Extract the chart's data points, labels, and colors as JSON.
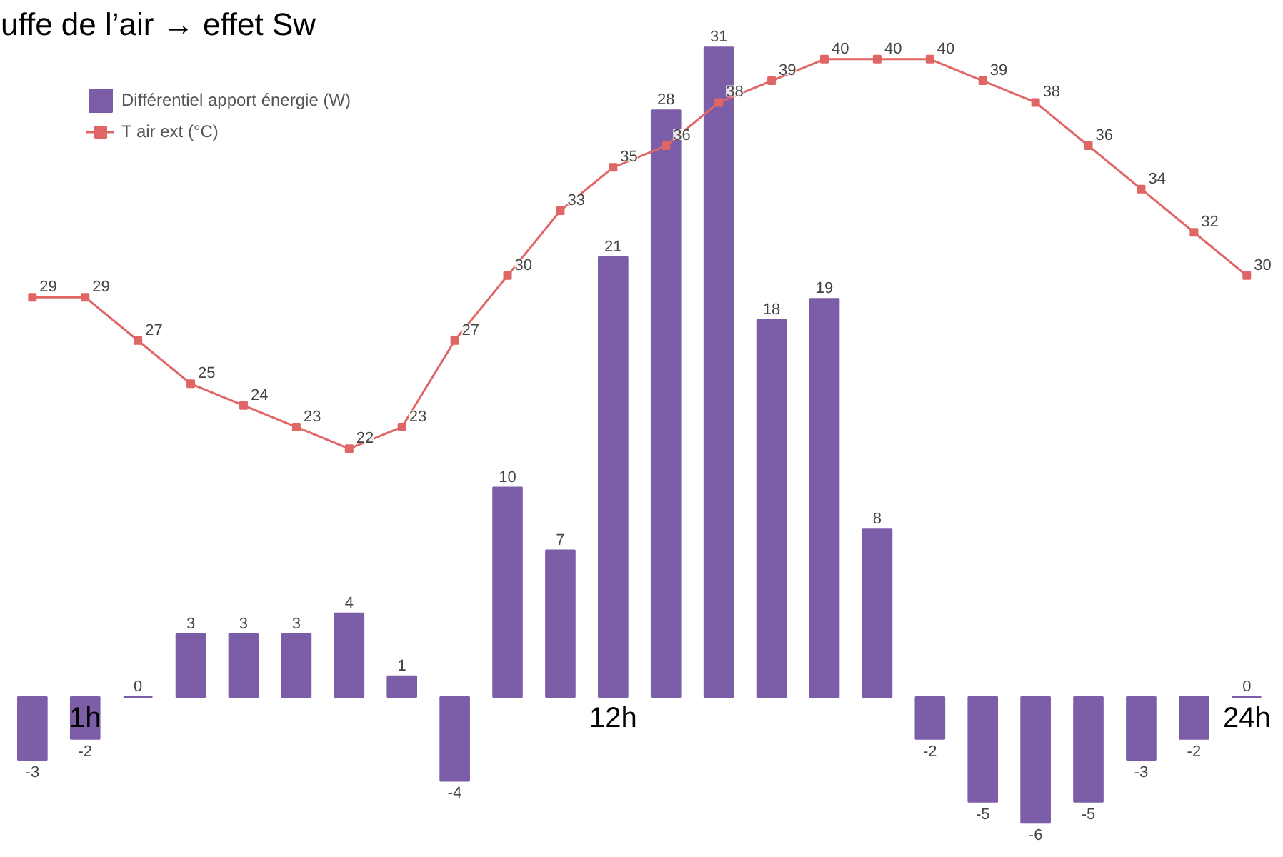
{
  "chart_data": {
    "type": "bar",
    "title": "uffe de l’air → effet Sw",
    "categories": [
      null,
      "1h",
      null,
      null,
      null,
      null,
      null,
      null,
      null,
      null,
      null,
      "12h",
      null,
      null,
      null,
      null,
      null,
      null,
      null,
      null,
      null,
      null,
      null,
      "24h"
    ],
    "series": [
      {
        "name": "Différentiel apport énergie (W)",
        "color": "#7b5ea7",
        "values": [
          -3,
          -2,
          0,
          3,
          3,
          3,
          4,
          1,
          -4,
          10,
          7,
          21,
          28,
          31,
          18,
          19,
          8,
          -2,
          -5,
          -6,
          -5,
          -3,
          -2,
          0
        ]
      },
      {
        "name": "T air ext (°C)",
        "type": "line",
        "axis": "y2",
        "color": "#e06666",
        "values": [
          29,
          29,
          27,
          25,
          24,
          23,
          22,
          23,
          27,
          30,
          33,
          35,
          36,
          38,
          39,
          40,
          40,
          40,
          39,
          38,
          36,
          34,
          32,
          30
        ]
      }
    ],
    "data_labels": true,
    "legend": "top left",
    "marker": "square",
    "grid": false,
    "tick_labels": "x"
  }
}
